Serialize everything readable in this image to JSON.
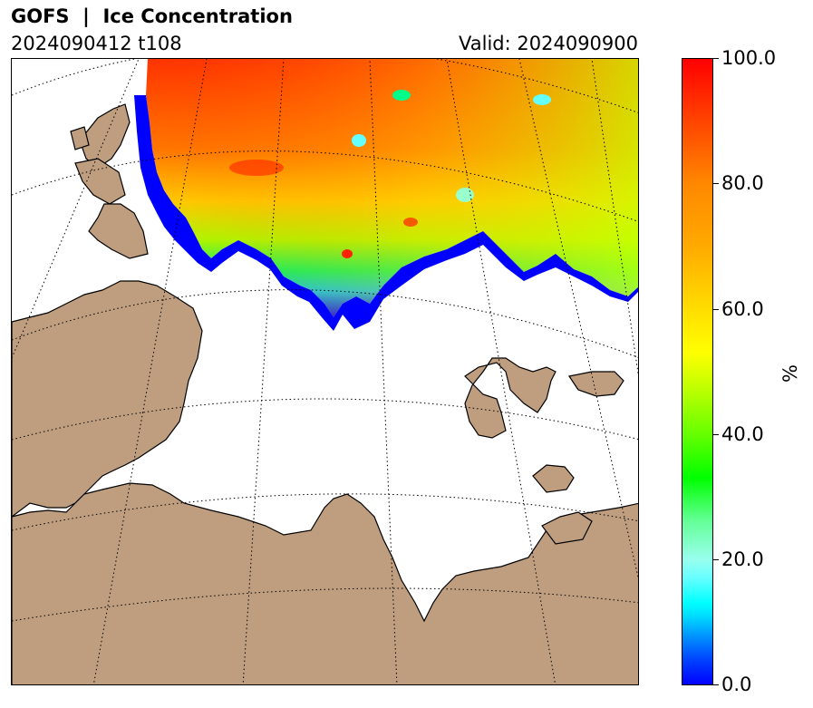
{
  "header": {
    "title": "GOFS  |  Ice Concentration",
    "run": "2024090412 t108",
    "valid": "Valid: 2024090900"
  },
  "colorbar": {
    "label": "%",
    "ticks": [
      "0.0",
      "20.0",
      "40.0",
      "60.0",
      "80.0",
      "100.0"
    ],
    "min": 0,
    "max": 100
  },
  "map": {
    "land_color": "#bf9e7f",
    "ocean_color": "#ffffff",
    "graticule_style": "dotted"
  }
}
